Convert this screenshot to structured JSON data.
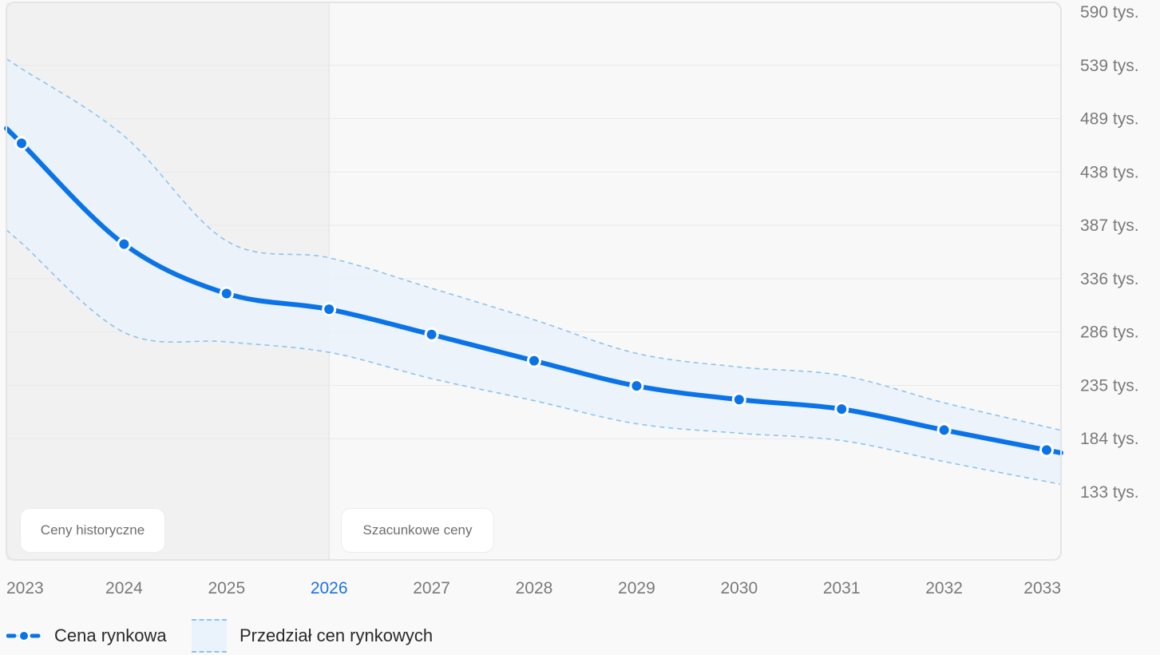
{
  "chart_data": {
    "type": "line",
    "title": "",
    "xlabel": "",
    "ylabel": "",
    "x": [
      "2023",
      "2024",
      "2025",
      "2026",
      "2027",
      "2028",
      "2029",
      "2030",
      "2031",
      "2032",
      "2033"
    ],
    "current_year": "2026",
    "y_ticks": [
      "590 tys.",
      "539 tys.",
      "489 tys.",
      "438 tys.",
      "387 tys.",
      "336 tys.",
      "286 tys.",
      "235 tys.",
      "184 tys.",
      "133 tys."
    ],
    "ylim": [
      133000,
      590000
    ],
    "series": [
      {
        "name": "Cena rynkowa",
        "values": [
          465000,
          369000,
          322000,
          307000,
          283000,
          258000,
          234000,
          221000,
          212000,
          192000,
          173000
        ]
      }
    ],
    "band": {
      "name": "Przedział cen rynkowych",
      "x": [
        "2023",
        "2024",
        "2025",
        "2026",
        "2027",
        "2028",
        "2029",
        "2030",
        "2031",
        "2032",
        "2033"
      ],
      "upper": [
        536000,
        472000,
        372000,
        356000,
        327000,
        297000,
        265000,
        252000,
        244000,
        218000,
        195000
      ],
      "lower": [
        370000,
        285000,
        276000,
        266000,
        241000,
        220000,
        198000,
        189000,
        182000,
        162000,
        143000
      ]
    },
    "regions": {
      "historical": "Ceny historyczne",
      "estimated": "Szacunkowe ceny"
    },
    "legend_position": "bottom-left",
    "grid": true
  },
  "legend": {
    "price": "Cena rynkowa",
    "range": "Przedział cen rynkowych"
  },
  "colors": {
    "line": "#0a73e8",
    "band_fill": "#eaf2fc",
    "band_stroke": "#8cc3ef",
    "historical_bg": "#f1f1f1",
    "estimate_bg": "#f8f8f8",
    "gridline": "#e9e9e9",
    "tick_text": "#7a7a7a",
    "current_tick": "#1a73e8"
  }
}
